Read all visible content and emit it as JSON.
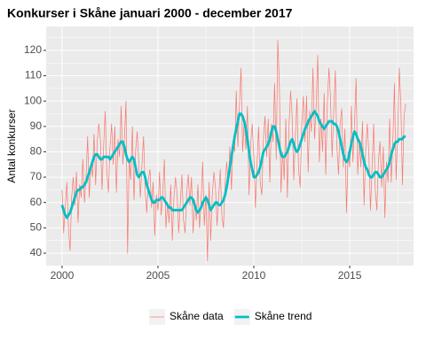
{
  "chart_data": {
    "type": "line",
    "title": "Konkurser i Skåne januari 2000 - december 2017",
    "y_label": "Antal konkurser",
    "xlim": [
      1999.17,
      2018.33
    ],
    "xticks": [
      2000,
      2005,
      2010,
      2015
    ],
    "minor_xticks": [
      2002.5,
      2007.5,
      2012.5,
      2017.5
    ],
    "ylim": [
      35.1,
      129.4
    ],
    "yticks": [
      40,
      50,
      60,
      70,
      80,
      90,
      100,
      110,
      120
    ],
    "minor_yticks": [
      45,
      55,
      65,
      75,
      85,
      95,
      105,
      115,
      125
    ],
    "grid": true,
    "legend": "bottom",
    "x": [
      2000,
      2000.083,
      2000.167,
      2000.25,
      2000.333,
      2000.417,
      2000.5,
      2000.583,
      2000.667,
      2000.75,
      2000.833,
      2000.917,
      2001,
      2001.083,
      2001.167,
      2001.25,
      2001.333,
      2001.417,
      2001.5,
      2001.583,
      2001.667,
      2001.75,
      2001.833,
      2001.917,
      2002,
      2002.083,
      2002.167,
      2002.25,
      2002.333,
      2002.417,
      2002.5,
      2002.583,
      2002.667,
      2002.75,
      2002.833,
      2002.917,
      2003,
      2003.083,
      2003.167,
      2003.25,
      2003.333,
      2003.417,
      2003.5,
      2003.583,
      2003.667,
      2003.75,
      2003.833,
      2003.917,
      2004,
      2004.083,
      2004.167,
      2004.25,
      2004.333,
      2004.417,
      2004.5,
      2004.583,
      2004.667,
      2004.75,
      2004.833,
      2004.917,
      2005,
      2005.083,
      2005.167,
      2005.25,
      2005.333,
      2005.417,
      2005.5,
      2005.583,
      2005.667,
      2005.75,
      2005.833,
      2005.917,
      2006,
      2006.083,
      2006.167,
      2006.25,
      2006.333,
      2006.417,
      2006.5,
      2006.583,
      2006.667,
      2006.75,
      2006.833,
      2006.917,
      2007,
      2007.083,
      2007.167,
      2007.25,
      2007.333,
      2007.417,
      2007.5,
      2007.583,
      2007.667,
      2007.75,
      2007.833,
      2007.917,
      2008,
      2008.083,
      2008.167,
      2008.25,
      2008.333,
      2008.417,
      2008.5,
      2008.583,
      2008.667,
      2008.75,
      2008.833,
      2008.917,
      2009,
      2009.083,
      2009.167,
      2009.25,
      2009.333,
      2009.417,
      2009.5,
      2009.583,
      2009.667,
      2009.75,
      2009.833,
      2009.917,
      2010,
      2010.083,
      2010.167,
      2010.25,
      2010.333,
      2010.417,
      2010.5,
      2010.583,
      2010.667,
      2010.75,
      2010.833,
      2010.917,
      2011,
      2011.083,
      2011.167,
      2011.25,
      2011.333,
      2011.417,
      2011.5,
      2011.583,
      2011.667,
      2011.75,
      2011.833,
      2011.917,
      2012,
      2012.083,
      2012.167,
      2012.25,
      2012.333,
      2012.417,
      2012.5,
      2012.583,
      2012.667,
      2012.75,
      2012.833,
      2012.917,
      2013,
      2013.083,
      2013.167,
      2013.25,
      2013.333,
      2013.417,
      2013.5,
      2013.583,
      2013.667,
      2013.75,
      2013.833,
      2013.917,
      2014,
      2014.083,
      2014.167,
      2014.25,
      2014.333,
      2014.417,
      2014.5,
      2014.583,
      2014.667,
      2014.75,
      2014.833,
      2014.917,
      2015,
      2015.083,
      2015.167,
      2015.25,
      2015.333,
      2015.417,
      2015.5,
      2015.583,
      2015.667,
      2015.75,
      2015.833,
      2015.917,
      2016,
      2016.083,
      2016.167,
      2016.25,
      2016.333,
      2016.417,
      2016.5,
      2016.583,
      2016.667,
      2016.75,
      2016.833,
      2016.917,
      2017,
      2017.083,
      2017.167,
      2017.25,
      2017.333,
      2017.417,
      2017.5,
      2017.583,
      2017.667,
      2017.75,
      2017.833,
      2017.917
    ],
    "series": [
      {
        "name": "Skåne data",
        "color": "#F8766D",
        "values": [
          65,
          48,
          58,
          68,
          50,
          41,
          62,
          70,
          59,
          72,
          52,
          67,
          62,
          77,
          60,
          70,
          86,
          62,
          75,
          70,
          87,
          67,
          84,
          91,
          85,
          65,
          82,
          96,
          72,
          64,
          82,
          91,
          75,
          90,
          64,
          85,
          78,
          98,
          75,
          85,
          100,
          40,
          77,
          69,
          90,
          61,
          80,
          88,
          76,
          62,
          75,
          86,
          65,
          56,
          69,
          73,
          58,
          68,
          47,
          63,
          57,
          72,
          55,
          64,
          77,
          50,
          60,
          52,
          67,
          45,
          62,
          70,
          63,
          48,
          60,
          71,
          53,
          48,
          64,
          71,
          59,
          70,
          48,
          61,
          53,
          67,
          50,
          60,
          76,
          51,
          63,
          37,
          68,
          45,
          63,
          72,
          66,
          51,
          62,
          73,
          55,
          50,
          67,
          76,
          67,
          82,
          65,
          84,
          80,
          104,
          82,
          98,
          113,
          80,
          93,
          81,
          98,
          63,
          83,
          91,
          78,
          58,
          75,
          90,
          68,
          63,
          85,
          94,
          78,
          93,
          68,
          91,
          84,
          107,
          77,
          124,
          106,
          64,
          80,
          69,
          93,
          62,
          90,
          104,
          94,
          69,
          86,
          101,
          73,
          66,
          91,
          102,
          84,
          102,
          72,
          96,
          88,
          113,
          85,
          98,
          118,
          76,
          93,
          80,
          103,
          71,
          99,
          113,
          101,
          78,
          96,
          112,
          82,
          71,
          91,
          97,
          74,
          89,
          56,
          80,
          74,
          98,
          76,
          91,
          109,
          71,
          85,
          74,
          92,
          59,
          81,
          91,
          79,
          57,
          74,
          91,
          65,
          57,
          77,
          84,
          66,
          82,
          54,
          76,
          68,
          93,
          68,
          84,
          107,
          69,
          86,
          113,
          99,
          67,
          94,
          99
        ]
      },
      {
        "name": "Skåne trend",
        "color": "#00BFC4",
        "values": [
          59,
          57,
          55,
          54,
          55,
          56,
          58,
          60,
          62,
          64,
          65,
          65,
          66,
          66,
          67,
          68,
          70,
          72,
          74,
          76,
          78,
          79,
          79,
          78,
          77,
          77,
          78,
          78,
          78,
          78,
          77,
          78,
          79,
          80,
          81,
          82,
          83,
          84,
          84,
          82,
          79,
          77,
          76,
          77,
          78,
          77,
          74,
          71,
          70,
          71,
          72,
          72,
          70,
          67,
          65,
          63,
          61,
          60,
          60,
          61,
          61,
          61,
          62,
          62,
          61,
          60,
          59,
          58,
          58,
          57,
          57,
          57,
          57,
          57,
          57,
          57,
          58,
          59,
          60,
          61,
          62,
          62,
          61,
          59,
          57,
          56,
          57,
          58,
          60,
          61,
          62,
          61,
          59,
          57,
          58,
          59,
          60,
          60,
          59,
          59,
          60,
          61,
          63,
          66,
          70,
          74,
          78,
          82,
          86,
          89,
          92,
          95,
          95,
          94,
          92,
          89,
          85,
          80,
          76,
          73,
          70,
          70,
          71,
          72,
          74,
          77,
          80,
          81,
          82,
          83,
          85,
          88,
          90,
          90,
          88,
          85,
          82,
          79,
          78,
          78,
          79,
          80,
          82,
          84,
          85,
          83,
          81,
          80,
          81,
          83,
          85,
          87,
          89,
          90,
          92,
          93,
          94,
          95,
          96,
          95,
          94,
          92,
          91,
          90,
          89,
          90,
          91,
          92,
          92,
          92,
          91,
          91,
          90,
          88,
          85,
          82,
          79,
          77,
          76,
          77,
          80,
          83,
          86,
          88,
          87,
          85,
          84,
          82,
          79,
          76,
          74,
          73,
          71,
          70,
          70,
          71,
          72,
          72,
          71,
          70,
          70,
          71,
          72,
          73,
          74,
          76,
          79,
          81,
          83,
          84,
          84,
          85,
          85,
          85,
          86,
          86
        ]
      }
    ]
  }
}
